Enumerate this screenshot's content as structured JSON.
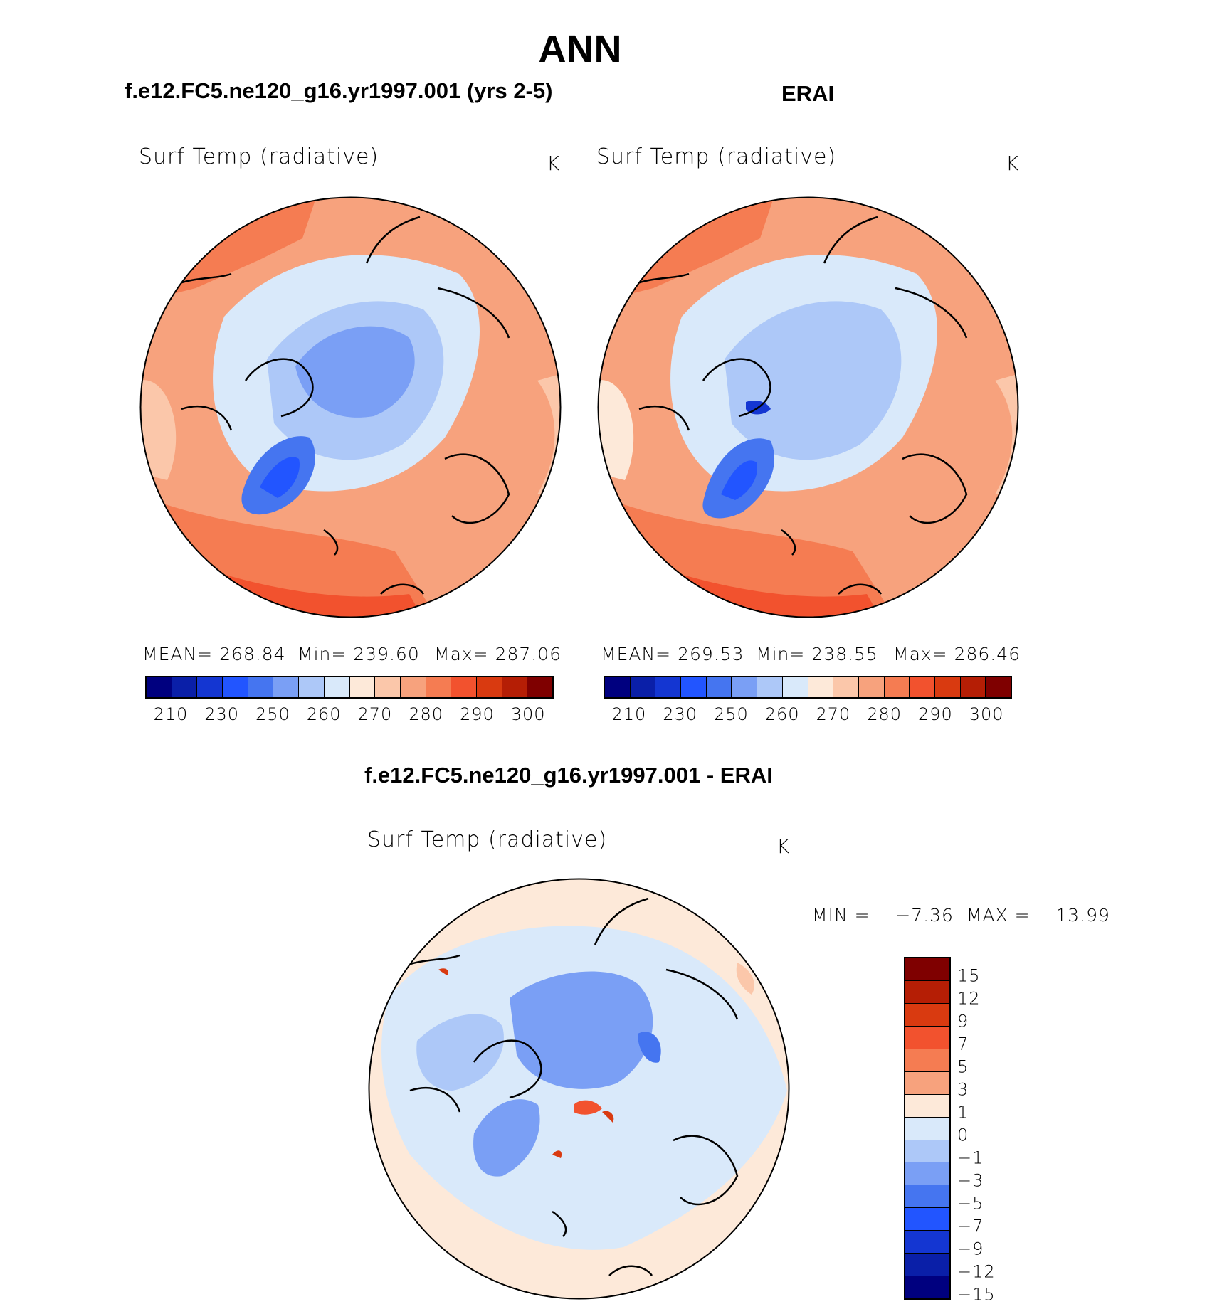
{
  "title": "ANN",
  "panels": {
    "model": {
      "case": "f.e12.FC5.ne120_g16.yr1997.001 (yrs 2-5)",
      "label": "Surf Temp (radiative)",
      "unit": "K",
      "mean_text": "MEAN=  268.84",
      "min_text": "Min=  239.60",
      "max_text": "Max=  287.06"
    },
    "obs": {
      "case": "ERAI",
      "label": "Surf Temp (radiative)",
      "unit": "K",
      "mean_text": "MEAN=  269.53",
      "min_text": "Min=  238.55",
      "max_text": "Max=  286.46"
    },
    "diff": {
      "case": "f.e12.FC5.ne120_g16.yr1997.001 - ERAI",
      "label": "Surf Temp (radiative)",
      "unit": "K",
      "minmax_text": "MIN =    −7.36  MAX =    13.99"
    }
  },
  "colorbar_abs": {
    "ticks": [
      "210",
      "230",
      "250",
      "260",
      "270",
      "280",
      "290",
      "300"
    ],
    "colors": [
      "#00007f",
      "#0a1fa8",
      "#1436d2",
      "#2255ff",
      "#4575f0",
      "#7a9ff5",
      "#adc8f8",
      "#d9e9fa",
      "#fde9d9",
      "#fbc7aa",
      "#f7a27d",
      "#f57c52",
      "#f2522e",
      "#d93a10",
      "#b51e05",
      "#7f0000"
    ]
  },
  "colorbar_diff": {
    "ticks": [
      "15",
      "12",
      "9",
      "7",
      "5",
      "3",
      "1",
      "0",
      "−1",
      "−3",
      "−5",
      "−7",
      "−9",
      "−12",
      "−15"
    ],
    "colors": [
      "#7f0000",
      "#b51e05",
      "#d93a10",
      "#f2522e",
      "#f57c52",
      "#f7a27d",
      "#fde9d9",
      "#d9e9fa",
      "#adc8f8",
      "#7a9ff5",
      "#4575f0",
      "#2255ff",
      "#1436d2",
      "#0a1fa8",
      "#00007f"
    ]
  }
}
